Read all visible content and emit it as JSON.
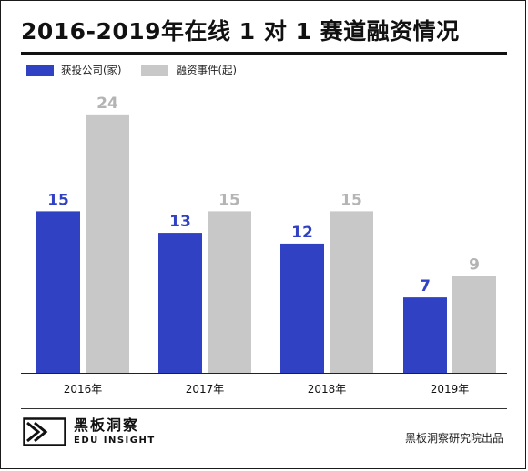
{
  "header": {
    "title": "2016-2019年在线 1 对 1 赛道融资情况"
  },
  "footer": {
    "logo_cn": "黑板洞察",
    "logo_en": "EDU INSIGHT",
    "source": "黑板洞察研究院出品"
  },
  "colors": {
    "funded_companies": "#3141c4",
    "funding_events": "#c8c8c8",
    "funded_label": "#3141c4",
    "events_label": "#b4b4b4"
  },
  "chart_data": {
    "type": "bar",
    "categories": [
      "2016年",
      "2017年",
      "2018年",
      "2019年"
    ],
    "series": [
      {
        "name": "获投公司(家)",
        "values": [
          15,
          13,
          12,
          7
        ]
      },
      {
        "name": "融资事件(起)",
        "values": [
          24,
          15,
          15,
          9
        ]
      }
    ],
    "ylim": [
      0,
      25
    ],
    "grid": false,
    "legend": "top-left",
    "title": "2016-2019年在线 1 对 1 赛道融资情况"
  }
}
